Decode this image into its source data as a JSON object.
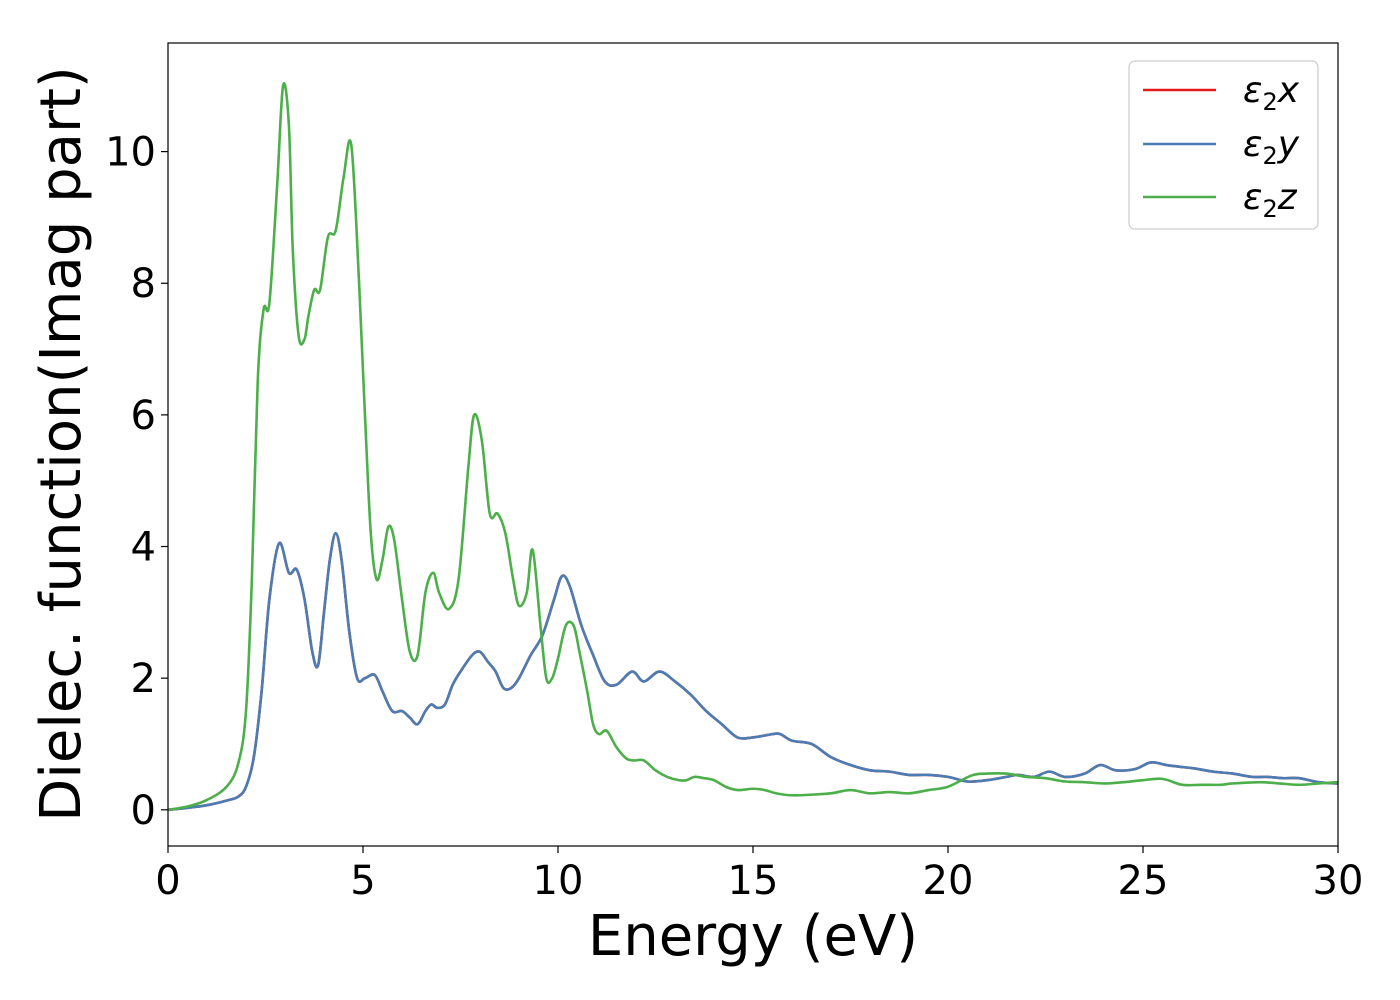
{
  "chart_data": {
    "type": "line",
    "title": "",
    "xlabel": "Energy (eV)",
    "ylabel": "Dielec. function(Imag part)",
    "xlim": [
      0,
      30
    ],
    "ylim": [
      -0.55,
      11.65
    ],
    "xticks": [
      0,
      5,
      10,
      15,
      20,
      25,
      30
    ],
    "xtick_labels": [
      "0",
      "5",
      "10",
      "15",
      "20",
      "25",
      "30"
    ],
    "yticks": [
      0,
      2,
      4,
      6,
      8,
      10
    ],
    "ytick_labels": [
      "0",
      "2",
      "4",
      "6",
      "8",
      "10"
    ],
    "grid": false,
    "legend_position": "top-right",
    "series": [
      {
        "name": "ε2x",
        "legend_base": "ε",
        "legend_sub": "2",
        "legend_suffix": "x",
        "color": "#e41a1c",
        "x": [
          0,
          0.5,
          1.0,
          1.5,
          1.8,
          2.0,
          2.2,
          2.4,
          2.6,
          2.85,
          3.1,
          3.3,
          3.5,
          3.7,
          3.85,
          4.0,
          4.15,
          4.3,
          4.45,
          4.65,
          4.85,
          5.05,
          5.3,
          5.5,
          5.75,
          6.0,
          6.2,
          6.4,
          6.6,
          6.75,
          6.9,
          7.1,
          7.3,
          7.5,
          7.8,
          8.0,
          8.2,
          8.4,
          8.6,
          8.8,
          9.0,
          9.3,
          9.6,
          9.9,
          10.1,
          10.3,
          10.6,
          10.9,
          11.2,
          11.5,
          11.9,
          12.2,
          12.6,
          13.0,
          13.4,
          13.8,
          14.2,
          14.6,
          15.0,
          15.5,
          15.7,
          16.0,
          16.5,
          17.0,
          17.5,
          18.0,
          18.5,
          19.0,
          19.5,
          20.0,
          20.5,
          21.0,
          21.5,
          21.8,
          22.2,
          22.6,
          23.0,
          23.5,
          23.9,
          24.3,
          24.8,
          25.2,
          25.6,
          26.0,
          26.3,
          26.8,
          27.3,
          27.8,
          28.2,
          28.6,
          29.0,
          29.5,
          30.0
        ],
        "y": [
          0.0,
          0.03,
          0.07,
          0.14,
          0.2,
          0.35,
          0.8,
          1.8,
          3.2,
          4.05,
          3.6,
          3.65,
          3.2,
          2.4,
          2.2,
          3.0,
          3.8,
          4.2,
          3.8,
          2.7,
          2.0,
          2.0,
          2.05,
          1.8,
          1.5,
          1.5,
          1.4,
          1.3,
          1.5,
          1.6,
          1.55,
          1.6,
          1.9,
          2.1,
          2.35,
          2.4,
          2.25,
          2.1,
          1.85,
          1.85,
          2.0,
          2.35,
          2.65,
          3.2,
          3.55,
          3.4,
          2.8,
          2.35,
          1.95,
          1.9,
          2.1,
          1.95,
          2.1,
          1.95,
          1.75,
          1.5,
          1.3,
          1.1,
          1.1,
          1.15,
          1.15,
          1.05,
          1.0,
          0.8,
          0.68,
          0.6,
          0.58,
          0.53,
          0.53,
          0.5,
          0.43,
          0.45,
          0.5,
          0.53,
          0.5,
          0.58,
          0.5,
          0.55,
          0.68,
          0.6,
          0.62,
          0.72,
          0.68,
          0.65,
          0.63,
          0.58,
          0.55,
          0.5,
          0.5,
          0.48,
          0.48,
          0.42,
          0.4
        ]
      },
      {
        "name": "ε2y",
        "legend_base": "ε",
        "legend_sub": "2",
        "legend_suffix": "y",
        "color": "#4a7db4",
        "x": [
          0,
          0.5,
          1.0,
          1.5,
          1.8,
          2.0,
          2.2,
          2.4,
          2.6,
          2.85,
          3.1,
          3.3,
          3.5,
          3.7,
          3.85,
          4.0,
          4.15,
          4.3,
          4.45,
          4.65,
          4.85,
          5.05,
          5.3,
          5.5,
          5.75,
          6.0,
          6.2,
          6.4,
          6.6,
          6.75,
          6.9,
          7.1,
          7.3,
          7.5,
          7.8,
          8.0,
          8.2,
          8.4,
          8.6,
          8.8,
          9.0,
          9.3,
          9.6,
          9.9,
          10.1,
          10.3,
          10.6,
          10.9,
          11.2,
          11.5,
          11.9,
          12.2,
          12.6,
          13.0,
          13.4,
          13.8,
          14.2,
          14.6,
          15.0,
          15.5,
          15.7,
          16.0,
          16.5,
          17.0,
          17.5,
          18.0,
          18.5,
          19.0,
          19.5,
          20.0,
          20.5,
          21.0,
          21.5,
          21.8,
          22.2,
          22.6,
          23.0,
          23.5,
          23.9,
          24.3,
          24.8,
          25.2,
          25.6,
          26.0,
          26.3,
          26.8,
          27.3,
          27.8,
          28.2,
          28.6,
          29.0,
          29.5,
          30.0
        ],
        "y": [
          0.0,
          0.03,
          0.07,
          0.14,
          0.2,
          0.35,
          0.8,
          1.8,
          3.2,
          4.05,
          3.6,
          3.65,
          3.2,
          2.4,
          2.2,
          3.0,
          3.8,
          4.2,
          3.8,
          2.7,
          2.0,
          2.0,
          2.05,
          1.8,
          1.5,
          1.5,
          1.4,
          1.3,
          1.5,
          1.6,
          1.55,
          1.6,
          1.9,
          2.1,
          2.35,
          2.4,
          2.25,
          2.1,
          1.85,
          1.85,
          2.0,
          2.35,
          2.65,
          3.2,
          3.55,
          3.4,
          2.8,
          2.35,
          1.95,
          1.9,
          2.1,
          1.95,
          2.1,
          1.95,
          1.75,
          1.5,
          1.3,
          1.1,
          1.1,
          1.15,
          1.15,
          1.05,
          1.0,
          0.8,
          0.68,
          0.6,
          0.58,
          0.53,
          0.53,
          0.5,
          0.43,
          0.45,
          0.5,
          0.53,
          0.5,
          0.58,
          0.5,
          0.55,
          0.68,
          0.6,
          0.62,
          0.72,
          0.68,
          0.65,
          0.63,
          0.58,
          0.55,
          0.5,
          0.5,
          0.48,
          0.48,
          0.42,
          0.4
        ]
      },
      {
        "name": "ε2z",
        "legend_base": "ε",
        "legend_sub": "2",
        "legend_suffix": "z",
        "color": "#4daf4a",
        "x": [
          0,
          0.5,
          1.0,
          1.5,
          1.8,
          2.0,
          2.15,
          2.3,
          2.45,
          2.6,
          2.8,
          2.95,
          3.1,
          3.2,
          3.35,
          3.5,
          3.6,
          3.75,
          3.9,
          4.1,
          4.3,
          4.5,
          4.7,
          4.9,
          5.05,
          5.2,
          5.35,
          5.5,
          5.65,
          5.8,
          6.0,
          6.2,
          6.4,
          6.6,
          6.8,
          6.95,
          7.2,
          7.45,
          7.7,
          7.85,
          8.05,
          8.25,
          8.45,
          8.65,
          8.85,
          9.0,
          9.2,
          9.35,
          9.55,
          9.7,
          9.85,
          10.0,
          10.2,
          10.4,
          10.55,
          10.75,
          10.9,
          11.05,
          11.25,
          11.5,
          11.75,
          11.95,
          12.2,
          12.5,
          12.8,
          13.1,
          13.3,
          13.5,
          13.75,
          14.0,
          14.3,
          14.6,
          15.0,
          15.3,
          15.6,
          16.0,
          16.5,
          17.0,
          17.5,
          18.0,
          18.5,
          19.0,
          19.5,
          20.0,
          20.6,
          21.0,
          21.5,
          22.0,
          22.5,
          23.0,
          23.5,
          24.0,
          24.5,
          25.0,
          25.5,
          26.0,
          26.5,
          27.0,
          27.3,
          28.0,
          28.5,
          29.0,
          29.5,
          30.0
        ],
        "y": [
          0.0,
          0.05,
          0.15,
          0.35,
          0.7,
          1.5,
          3.5,
          6.5,
          7.6,
          7.7,
          9.5,
          11.0,
          10.4,
          8.5,
          7.2,
          7.15,
          7.5,
          7.9,
          7.9,
          8.7,
          8.8,
          9.6,
          10.1,
          8.0,
          6.0,
          4.2,
          3.5,
          3.8,
          4.3,
          4.1,
          3.2,
          2.4,
          2.35,
          3.3,
          3.6,
          3.3,
          3.05,
          3.5,
          5.2,
          6.0,
          5.6,
          4.5,
          4.5,
          4.2,
          3.5,
          3.1,
          3.3,
          3.95,
          2.8,
          2.0,
          2.0,
          2.3,
          2.8,
          2.8,
          2.4,
          1.8,
          1.3,
          1.15,
          1.2,
          0.95,
          0.78,
          0.75,
          0.75,
          0.6,
          0.5,
          0.45,
          0.45,
          0.5,
          0.48,
          0.45,
          0.35,
          0.3,
          0.32,
          0.3,
          0.25,
          0.22,
          0.23,
          0.25,
          0.3,
          0.25,
          0.27,
          0.25,
          0.3,
          0.35,
          0.52,
          0.55,
          0.55,
          0.5,
          0.48,
          0.43,
          0.42,
          0.4,
          0.42,
          0.45,
          0.47,
          0.38,
          0.38,
          0.38,
          0.4,
          0.42,
          0.4,
          0.38,
          0.4,
          0.42
        ]
      }
    ]
  }
}
